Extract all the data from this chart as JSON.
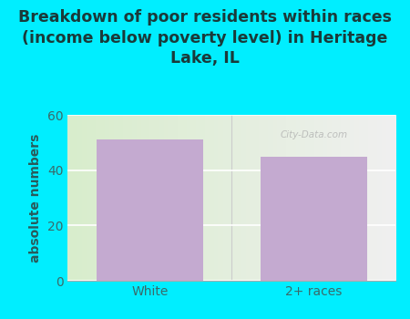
{
  "categories": [
    "White",
    "2+ races"
  ],
  "values": [
    51,
    45
  ],
  "bar_color": "#c4aad0",
  "title": "Breakdown of poor residents within races\n(income below poverty level) in Heritage\nLake, IL",
  "ylabel": "absolute numbers",
  "ylim": [
    0,
    60
  ],
  "yticks": [
    0,
    20,
    40,
    60
  ],
  "title_color": "#1a3a3a",
  "ylabel_color": "#2a5a5a",
  "tick_color": "#3a6a6a",
  "bg_cyan": "#00eeff",
  "bg_plot_left": "#d8edcc",
  "bg_plot_right": "#f0f0f0",
  "grid_color": "#ffffff",
  "watermark": "City-Data.com",
  "title_fontsize": 12.5,
  "ylabel_fontsize": 10,
  "tick_fontsize": 10
}
